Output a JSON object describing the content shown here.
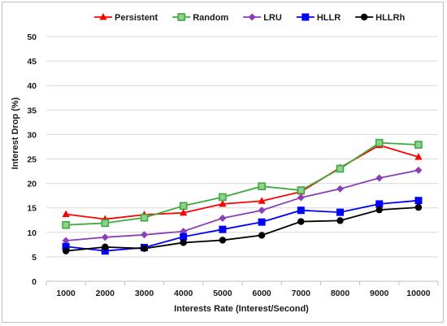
{
  "chart_data": {
    "type": "line",
    "title": "",
    "xlabel": "Interests Rate (Interest/Second)",
    "ylabel": "Interest Drop (%)",
    "ylim": [
      0,
      50
    ],
    "yticks": [
      0,
      5,
      10,
      15,
      20,
      25,
      30,
      35,
      40,
      45,
      50
    ],
    "categories": [
      "1000",
      "2000",
      "3000",
      "4000",
      "5000",
      "6000",
      "7000",
      "8000",
      "9000",
      "10000"
    ],
    "grid": "horizontal",
    "legend_position": "top",
    "series": [
      {
        "name": "Persistent",
        "color": "#ff0000",
        "marker": "triangle",
        "values": [
          13.7,
          12.7,
          13.6,
          14.0,
          15.8,
          16.4,
          18.3,
          23.2,
          27.8,
          25.4
        ]
      },
      {
        "name": "Random",
        "color": "#3daa3d",
        "marker": "square-hollow",
        "values": [
          11.5,
          11.9,
          13.0,
          15.4,
          17.2,
          19.4,
          18.6,
          23.0,
          28.3,
          27.9
        ]
      },
      {
        "name": "LRU",
        "color": "#8a3fb5",
        "marker": "diamond",
        "values": [
          8.3,
          9.0,
          9.5,
          10.2,
          12.9,
          14.5,
          17.1,
          18.9,
          21.1,
          22.7
        ]
      },
      {
        "name": "HLLR",
        "color": "#0000ff",
        "marker": "square",
        "values": [
          7.1,
          6.2,
          6.9,
          9.1,
          10.6,
          12.1,
          14.5,
          14.1,
          15.8,
          16.5
        ]
      },
      {
        "name": "HLLRh",
        "color": "#000000",
        "marker": "circle",
        "values": [
          6.2,
          7.0,
          6.7,
          7.9,
          8.4,
          9.4,
          12.2,
          12.4,
          14.6,
          15.1
        ]
      }
    ]
  }
}
